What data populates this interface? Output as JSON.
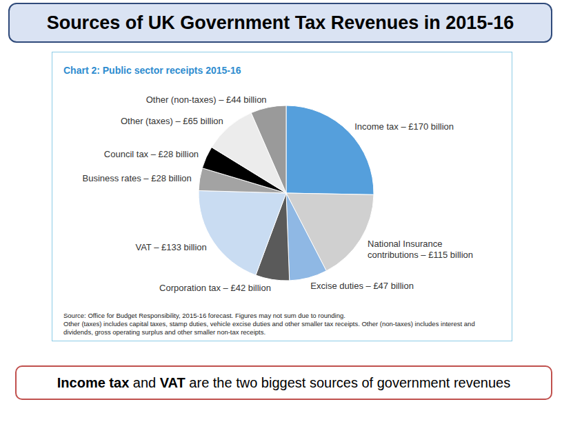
{
  "header": {
    "title": "Sources of UK Government Tax Revenues in 2015-16"
  },
  "chart_data": {
    "type": "pie",
    "title": "Chart 2: Public sector receipts 2015-16",
    "categories": [
      "Income tax – £170 billion",
      "National Insurance contributions – £115 billion",
      "Excise duties – £47 billion",
      "Corporation tax – £42 billion",
      "VAT – £133 billion",
      "Business rates – £28 billion",
      "Council tax – £28 billion",
      "Other (taxes) – £65 billion",
      "Other (non-taxes) – £44 billion"
    ],
    "values": [
      170,
      115,
      47,
      42,
      133,
      28,
      28,
      65,
      44
    ],
    "colors": [
      "#559fdc",
      "#d0d0d0",
      "#8fb8e4",
      "#5a5a5a",
      "#c9dcf2",
      "#a3a3a3",
      "#000000",
      "#ececec",
      "#9a9a9a"
    ],
    "annotations": [
      "Source: Office for Budget Responsibility, 2015-16 forecast. Figures may not sum due to rounding.",
      "Other (taxes) includes capital taxes, stamp duties, vehicle excise duties and other smaller tax receipts. Other (non-taxes) includes interest and dividends, gross operating surplus and other smaller non-tax receipts."
    ]
  },
  "footer": {
    "caption": [
      {
        "text": "Income tax",
        "bold": true
      },
      {
        "text": " and ",
        "bold": false
      },
      {
        "text": "VAT",
        "bold": true
      },
      {
        "text": " are the two biggest sources of government revenues",
        "bold": false
      }
    ]
  }
}
